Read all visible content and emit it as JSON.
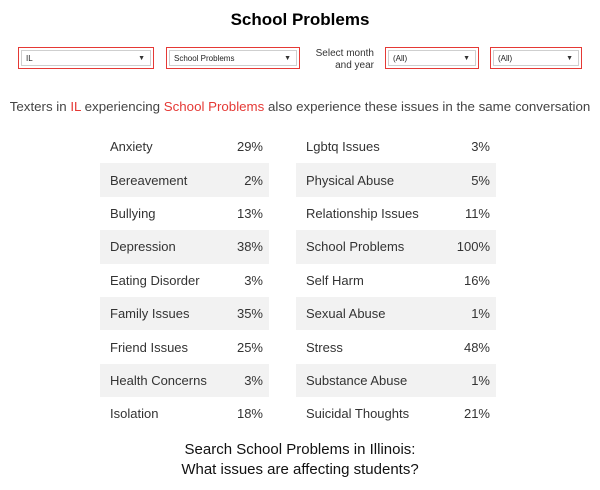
{
  "header": {
    "title": "School Problems"
  },
  "filters": {
    "state": {
      "value": "IL"
    },
    "issue": {
      "value": "School Problems"
    },
    "month_label": {
      "line1": "Select month",
      "line2": "and year"
    },
    "month": {
      "value": "(All)"
    },
    "year": {
      "value": "(All)"
    }
  },
  "subtitle": {
    "prefix": "Texters in ",
    "state": "IL",
    "mid": " experiencing ",
    "issue": "School Problems",
    "suffix": " also experience these issues in the same conversation"
  },
  "colors": {
    "accent": "#e53935",
    "row_shade": "#f2f2f2"
  },
  "left_column": [
    {
      "label": "Anxiety",
      "value": "29%"
    },
    {
      "label": "Bereavement",
      "value": "2%"
    },
    {
      "label": "Bullying",
      "value": "13%"
    },
    {
      "label": "Depression",
      "value": "38%"
    },
    {
      "label": "Eating Disorder",
      "value": "3%"
    },
    {
      "label": "Family Issues",
      "value": "35%"
    },
    {
      "label": "Friend Issues",
      "value": "25%"
    },
    {
      "label": "Health Concerns",
      "value": "3%"
    },
    {
      "label": "Isolation",
      "value": "18%"
    }
  ],
  "right_column": [
    {
      "label": "Lgbtq Issues",
      "value": "3%"
    },
    {
      "label": "Physical Abuse",
      "value": "5%"
    },
    {
      "label": "Relationship Issues",
      "value": "11%"
    },
    {
      "label": "School Problems",
      "value": "100%"
    },
    {
      "label": "Self Harm",
      "value": "16%"
    },
    {
      "label": "Sexual Abuse",
      "value": "1%"
    },
    {
      "label": "Stress",
      "value": "48%"
    },
    {
      "label": "Substance Abuse",
      "value": "1%"
    },
    {
      "label": "Suicidal Thoughts",
      "value": "21%"
    }
  ],
  "footer": {
    "line1": "Search School Problems in Illinois:",
    "line2": "What issues are affecting students?"
  }
}
